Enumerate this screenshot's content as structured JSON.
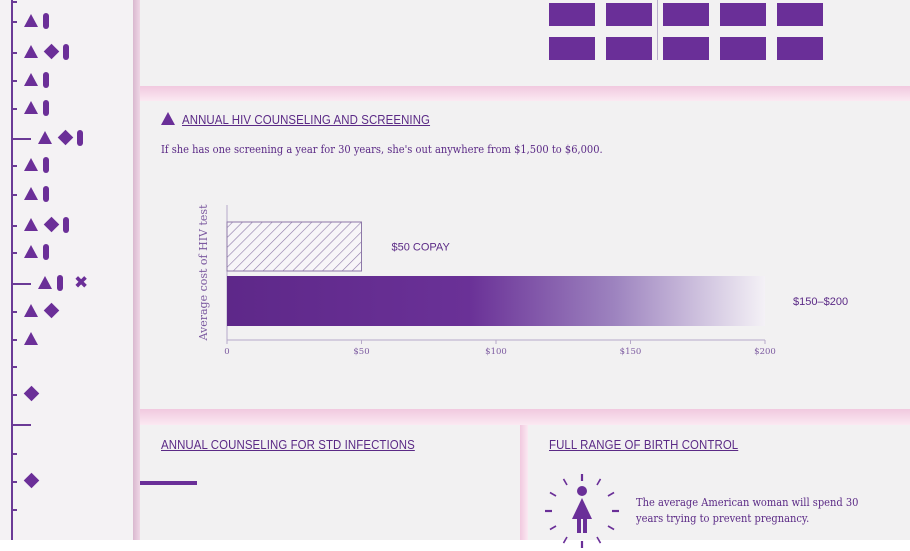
{
  "colors": {
    "accent": "#5b2a86",
    "bar": "#6a2f98",
    "band": "#f4cfe2",
    "panel": "#f2f1f2"
  },
  "sidebar": {
    "rows": [
      {
        "y": 0,
        "markers": [
          "dash-long"
        ]
      },
      {
        "y": 20,
        "markers": [
          "triangle",
          "pill"
        ]
      },
      {
        "y": 51,
        "markers": [
          "triangle",
          "diamond",
          "pill"
        ]
      },
      {
        "y": 79,
        "markers": [
          "triangle",
          "pill"
        ]
      },
      {
        "y": 107,
        "markers": [
          "triangle",
          "pill"
        ]
      },
      {
        "y": 137,
        "markers": [
          "triangle",
          "diamond",
          "pill"
        ]
      },
      {
        "y": 164,
        "markers": [
          "triangle",
          "pill"
        ]
      },
      {
        "y": 193,
        "markers": [
          "triangle",
          "pill"
        ]
      },
      {
        "y": 224,
        "markers": [
          "triangle",
          "diamond",
          "pill"
        ]
      },
      {
        "y": 251,
        "markers": [
          "triangle",
          "pill"
        ]
      },
      {
        "y": 282,
        "markers": [
          "triangle",
          "pill",
          "x"
        ]
      },
      {
        "y": 310,
        "markers": [
          "triangle",
          "diamond"
        ]
      },
      {
        "y": 338,
        "markers": [
          "triangle"
        ]
      },
      {
        "y": 393,
        "markers": [
          "diamond"
        ]
      },
      {
        "y": 480,
        "markers": [
          "diamond"
        ]
      }
    ]
  },
  "hiv": {
    "title": "ANNUAL HIV COUNSELING AND SCREENING",
    "text": "If she has one screening a year for 30 years, she's out anywhere from $1,500 to $6,000."
  },
  "chart_data": {
    "type": "bar",
    "orientation": "horizontal",
    "categories": [
      "$50 COPAY",
      "$150–$200"
    ],
    "values": [
      50,
      200
    ],
    "range_low": [
      50,
      150
    ],
    "value_labels": [
      "$50 COPAY",
      "$150–$200"
    ],
    "xlabel": "",
    "ylabel": "Average cost of HIV test",
    "xlim": [
      0,
      200
    ],
    "xticks": [
      0,
      50,
      100,
      150,
      200
    ],
    "xtick_labels": [
      "0",
      "$50",
      "$100",
      "$150",
      "$200"
    ],
    "grid": false,
    "legend": "none"
  },
  "std": {
    "title": "ANNUAL COUNSELING FOR STD INFECTIONS"
  },
  "birth_control": {
    "title": "FULL RANGE OF BIRTH CONTROL",
    "text_line1": "The average American woman will spend 30",
    "text_line2": "years trying to prevent pregnancy."
  },
  "icons": {
    "clock": "clock-icon",
    "woman": "woman-icon"
  }
}
